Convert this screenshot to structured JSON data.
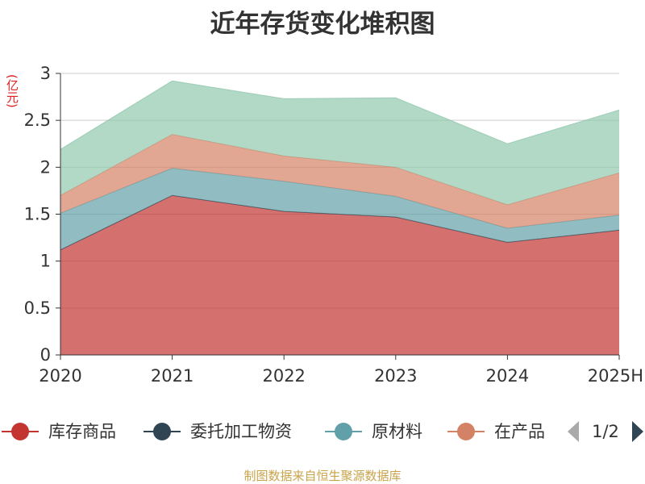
{
  "title": "近年存货变化堆积图",
  "unit_label": "(亿元)",
  "source_text": "制图数据来自恒生聚源数据库",
  "legend_page": "1/2",
  "chart_data": {
    "type": "area",
    "stacked": true,
    "title": "近年存货变化堆积图",
    "ylabel": "(亿元)",
    "xlabel": "",
    "categories": [
      "2020",
      "2021",
      "2022",
      "2023",
      "2024",
      "2025H"
    ],
    "ylim": [
      0,
      3
    ],
    "yticks": [
      0,
      0.5,
      1,
      1.5,
      2,
      2.5,
      3
    ],
    "ytick_labels": [
      "0",
      "0.5",
      "1",
      "1.5",
      "2",
      "2.5",
      "3"
    ],
    "grid": true,
    "legend_position": "bottom",
    "series": [
      {
        "name": "库存商品",
        "color": "#c23531",
        "values": [
          1.12,
          1.7,
          1.53,
          1.47,
          1.2,
          1.33
        ]
      },
      {
        "name": "委托加工物资",
        "color": "#2f4554",
        "values": [
          0.0,
          0.0,
          0.0,
          0.0,
          0.0,
          0.0
        ]
      },
      {
        "name": "原材料",
        "color": "#61a0a8",
        "values": [
          0.39,
          0.29,
          0.32,
          0.22,
          0.15,
          0.16
        ]
      },
      {
        "name": "在产品",
        "color": "#d48265",
        "values": [
          0.19,
          0.36,
          0.27,
          0.31,
          0.25,
          0.45
        ]
      },
      {
        "color": "#91c7ae",
        "values": [
          0.49,
          0.57,
          0.61,
          0.74,
          0.65,
          0.67
        ]
      }
    ]
  }
}
